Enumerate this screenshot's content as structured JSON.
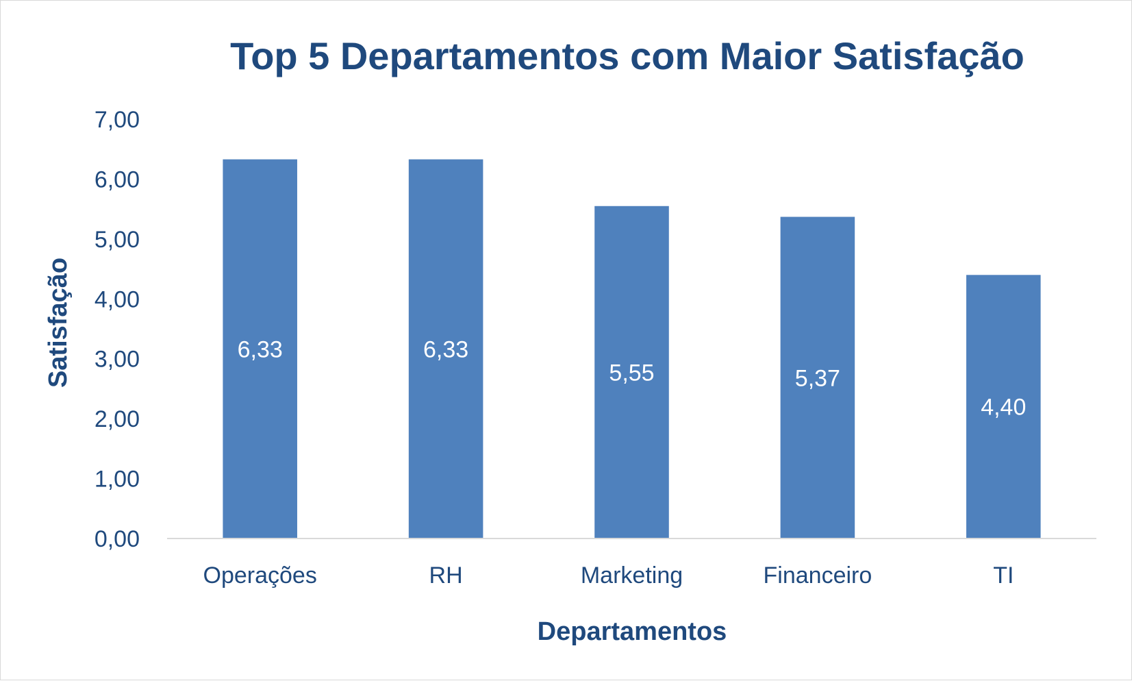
{
  "colors": {
    "bar": "#4f81bd",
    "text": "#1f497d",
    "axis_line": "#d9d9d9",
    "data_label": "#ffffff",
    "border": "#d9d9d9"
  },
  "chart_data": {
    "type": "bar",
    "title": "Top 5 Departamentos com Maior Satisfação",
    "xlabel": "Departamentos",
    "ylabel": "Satisfação",
    "categories": [
      "Operações",
      "RH",
      "Marketing",
      "Financeiro",
      "TI"
    ],
    "values": [
      6.33,
      6.33,
      5.55,
      5.37,
      4.4
    ],
    "data_labels": [
      "6,33",
      "6,33",
      "5,55",
      "5,37",
      "4,40"
    ],
    "ylim": [
      0,
      7
    ],
    "yticks": [
      0,
      1,
      2,
      3,
      4,
      5,
      6,
      7
    ],
    "ytick_labels": [
      "0,00",
      "1,00",
      "2,00",
      "3,00",
      "4,00",
      "5,00",
      "6,00",
      "7,00"
    ],
    "grid": false,
    "legend": "none"
  }
}
